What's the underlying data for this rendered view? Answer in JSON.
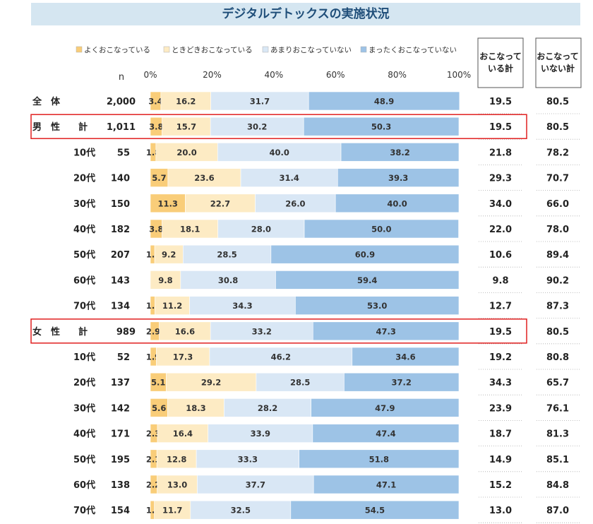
{
  "chart_data": {
    "type": "bar",
    "stacked": true,
    "orientation": "horizontal",
    "title": "デジタルデトックスの実施状況",
    "n_label": "n",
    "xlim": [
      0,
      100
    ],
    "x_ticks": [
      "0%",
      "20%",
      "40%",
      "60%",
      "80%",
      "100%"
    ],
    "legend_position": "top",
    "series": [
      {
        "name": "よくおこなっている",
        "color": "#f9cd79"
      },
      {
        "name": "ときどきおこなっている",
        "color": "#fdebc4"
      },
      {
        "name": "あまりおこなっていない",
        "color": "#d9e7f5"
      },
      {
        "name": "まったくおこなっていない",
        "color": "#9dc3e6"
      }
    ],
    "summary_headers": [
      "おこなっている計",
      "おこなっていない計"
    ],
    "rows": [
      {
        "label": "全　体",
        "n": "2,000",
        "values": [
          3.4,
          16.2,
          31.7,
          48.9
        ],
        "labels": [
          "3.4",
          "16.2",
          "31.7",
          "48.9"
        ],
        "done": "19.5",
        "not_done": "80.5",
        "group": true
      },
      {
        "label": "男　性　　計",
        "n": "1,011",
        "values": [
          3.8,
          15.7,
          30.2,
          50.3
        ],
        "labels": [
          "3.8",
          "15.7",
          "30.2",
          "50.3"
        ],
        "done": "19.5",
        "not_done": "80.5",
        "group": true,
        "highlight": true
      },
      {
        "label": "10代",
        "n": "55",
        "values": [
          1.8,
          20.0,
          40.0,
          38.2
        ],
        "labels": [
          "1.8",
          "20.0",
          "40.0",
          "38.2"
        ],
        "done": "21.8",
        "not_done": "78.2"
      },
      {
        "label": "20代",
        "n": "140",
        "values": [
          5.7,
          23.6,
          31.4,
          39.3
        ],
        "labels": [
          "5.7",
          "23.6",
          "31.4",
          "39.3"
        ],
        "done": "29.3",
        "not_done": "70.7"
      },
      {
        "label": "30代",
        "n": "150",
        "values": [
          11.3,
          22.7,
          26.0,
          40.0
        ],
        "labels": [
          "11.3",
          "22.7",
          "26.0",
          "40.0"
        ],
        "done": "34.0",
        "not_done": "66.0"
      },
      {
        "label": "40代",
        "n": "182",
        "values": [
          3.8,
          18.1,
          28.0,
          50.0
        ],
        "labels": [
          "3.8",
          "18.1",
          "28.0",
          "50.0"
        ],
        "done": "22.0",
        "not_done": "78.0"
      },
      {
        "label": "50代",
        "n": "207",
        "values": [
          1.4,
          9.2,
          28.5,
          60.9
        ],
        "labels": [
          "1.4",
          "9.2",
          "28.5",
          "60.9"
        ],
        "done": "10.6",
        "not_done": "89.4"
      },
      {
        "label": "60代",
        "n": "143",
        "values": [
          0.0,
          9.8,
          30.8,
          59.4
        ],
        "labels": [
          "",
          "9.8",
          "30.8",
          "59.4"
        ],
        "done": "9.8",
        "not_done": "90.2"
      },
      {
        "label": "70代",
        "n": "134",
        "values": [
          1.5,
          11.2,
          34.3,
          53.0
        ],
        "labels": [
          "1.5",
          "11.2",
          "34.3",
          "53.0"
        ],
        "done": "12.7",
        "not_done": "87.3"
      },
      {
        "label": "女　性　　計",
        "n": "989",
        "values": [
          2.9,
          16.6,
          33.2,
          47.3
        ],
        "labels": [
          "2.9",
          "16.6",
          "33.2",
          "47.3"
        ],
        "done": "19.5",
        "not_done": "80.5",
        "group": true,
        "highlight": true
      },
      {
        "label": "10代",
        "n": "52",
        "values": [
          1.9,
          17.3,
          46.2,
          34.6
        ],
        "labels": [
          "1.9",
          "17.3",
          "46.2",
          "34.6"
        ],
        "done": "19.2",
        "not_done": "80.8"
      },
      {
        "label": "20代",
        "n": "137",
        "values": [
          5.1,
          29.2,
          28.5,
          37.2
        ],
        "labels": [
          "5.1",
          "29.2",
          "28.5",
          "37.2"
        ],
        "done": "34.3",
        "not_done": "65.7"
      },
      {
        "label": "30代",
        "n": "142",
        "values": [
          5.6,
          18.3,
          28.2,
          47.9
        ],
        "labels": [
          "5.6",
          "18.3",
          "28.2",
          "47.9"
        ],
        "done": "23.9",
        "not_done": "76.1"
      },
      {
        "label": "40代",
        "n": "171",
        "values": [
          2.3,
          16.4,
          33.9,
          47.4
        ],
        "labels": [
          "2.3",
          "16.4",
          "33.9",
          "47.4"
        ],
        "done": "18.7",
        "not_done": "81.3"
      },
      {
        "label": "50代",
        "n": "195",
        "values": [
          2.1,
          12.8,
          33.3,
          51.8
        ],
        "labels": [
          "2.1",
          "12.8",
          "33.3",
          "51.8"
        ],
        "done": "14.9",
        "not_done": "85.1"
      },
      {
        "label": "60代",
        "n": "138",
        "values": [
          2.2,
          13.0,
          37.7,
          47.1
        ],
        "labels": [
          "2.2",
          "13.0",
          "37.7",
          "47.1"
        ],
        "done": "15.2",
        "not_done": "84.8"
      },
      {
        "label": "70代",
        "n": "154",
        "values": [
          1.3,
          11.7,
          32.5,
          54.5
        ],
        "labels": [
          "1.3",
          "11.7",
          "32.5",
          "54.5"
        ],
        "done": "13.0",
        "not_done": "87.0"
      }
    ]
  }
}
